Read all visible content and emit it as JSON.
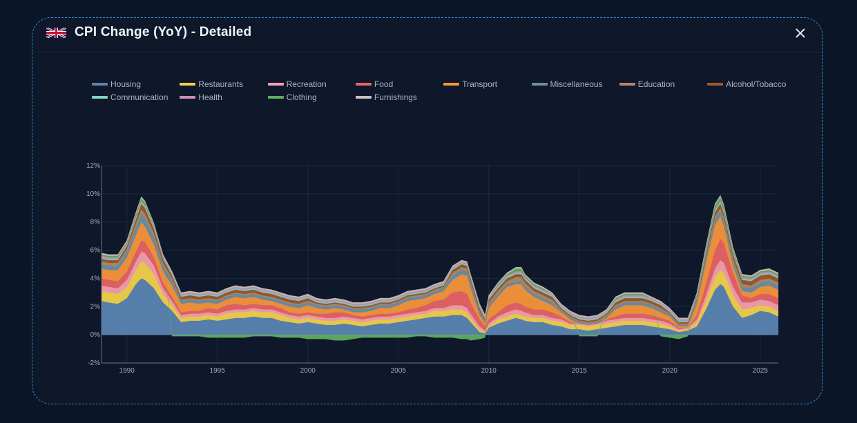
{
  "modal": {
    "title": "CPI Change (YoY) - Detailed",
    "flag_icon": "uk-flag-icon",
    "close_icon": "close-icon"
  },
  "colors": {
    "background": "#0a1628",
    "panel": "#0f172a",
    "border": "#2f8fd8"
  },
  "chart_data": {
    "type": "area",
    "stacked": true,
    "title": "",
    "xlabel": "",
    "ylabel": "",
    "xlim": [
      1988.6,
      2026.0
    ],
    "ylim": [
      -2,
      12
    ],
    "x_ticks": [
      "1990",
      "1995",
      "2000",
      "2005",
      "2010",
      "2015",
      "2020",
      "2025"
    ],
    "y_ticks": [
      "12%",
      "10%",
      "8%",
      "6%",
      "4%",
      "2%",
      "0%",
      "-2%"
    ],
    "grid": true,
    "legend_position": "top",
    "x": [
      1988.6,
      1989.0,
      1989.5,
      1990.0,
      1990.5,
      1990.8,
      1991.0,
      1991.5,
      1992.0,
      1992.5,
      1993.0,
      1993.5,
      1994.0,
      1994.5,
      1995.0,
      1995.5,
      1996.0,
      1996.5,
      1997.0,
      1997.5,
      1998.0,
      1998.5,
      1999.0,
      1999.5,
      2000.0,
      2000.5,
      2001.0,
      2001.5,
      2002.0,
      2002.5,
      2003.0,
      2003.5,
      2004.0,
      2004.5,
      2005.0,
      2005.5,
      2006.0,
      2006.5,
      2007.0,
      2007.5,
      2008.0,
      2008.5,
      2008.8,
      2009.0,
      2009.5,
      2009.8,
      2010.0,
      2010.5,
      2011.0,
      2011.5,
      2011.8,
      2012.0,
      2012.5,
      2013.0,
      2013.5,
      2014.0,
      2014.5,
      2015.0,
      2015.5,
      2016.0,
      2016.5,
      2017.0,
      2017.5,
      2018.0,
      2018.5,
      2019.0,
      2019.5,
      2020.0,
      2020.5,
      2021.0,
      2021.5,
      2022.0,
      2022.5,
      2022.8,
      2023.0,
      2023.5,
      2024.0,
      2024.5,
      2025.0,
      2025.5,
      2026.0
    ],
    "series": [
      {
        "name": "Housing",
        "color": "#5b84b1",
        "values": [
          2.4,
          2.3,
          2.2,
          2.6,
          3.6,
          4.0,
          3.9,
          3.3,
          2.3,
          1.7,
          0.9,
          1.0,
          1.0,
          1.1,
          1.0,
          1.1,
          1.2,
          1.2,
          1.3,
          1.2,
          1.2,
          1.0,
          0.9,
          0.8,
          0.9,
          0.8,
          0.7,
          0.7,
          0.8,
          0.7,
          0.6,
          0.7,
          0.8,
          0.8,
          0.9,
          1.0,
          1.1,
          1.2,
          1.3,
          1.3,
          1.4,
          1.4,
          1.2,
          0.9,
          0.2,
          0.1,
          0.5,
          0.8,
          1.0,
          1.2,
          1.1,
          1.0,
          0.9,
          0.9,
          0.7,
          0.6,
          0.4,
          0.4,
          0.3,
          0.4,
          0.5,
          0.6,
          0.7,
          0.7,
          0.7,
          0.6,
          0.5,
          0.4,
          0.2,
          0.3,
          0.6,
          1.8,
          3.2,
          3.6,
          3.4,
          2.0,
          1.2,
          1.4,
          1.7,
          1.6,
          1.3
        ]
      },
      {
        "name": "Restaurants",
        "color": "#f2d14a",
        "values": [
          0.7,
          0.7,
          0.7,
          0.8,
          1.0,
          1.2,
          1.2,
          1.0,
          0.6,
          0.4,
          0.3,
          0.3,
          0.3,
          0.3,
          0.3,
          0.4,
          0.4,
          0.4,
          0.4,
          0.4,
          0.4,
          0.4,
          0.3,
          0.3,
          0.3,
          0.3,
          0.3,
          0.3,
          0.3,
          0.3,
          0.3,
          0.3,
          0.3,
          0.3,
          0.3,
          0.3,
          0.3,
          0.3,
          0.4,
          0.4,
          0.4,
          0.4,
          0.4,
          0.3,
          0.2,
          0.1,
          0.1,
          0.3,
          0.3,
          0.3,
          0.3,
          0.3,
          0.3,
          0.3,
          0.3,
          0.3,
          0.3,
          0.3,
          0.3,
          0.3,
          0.3,
          0.3,
          0.3,
          0.3,
          0.3,
          0.3,
          0.3,
          0.2,
          0.1,
          0.1,
          0.3,
          0.6,
          0.9,
          1.0,
          1.0,
          0.8,
          0.6,
          0.5,
          0.4,
          0.4,
          0.4
        ]
      },
      {
        "name": "Recreation",
        "color": "#f4a0b0",
        "values": [
          0.4,
          0.4,
          0.4,
          0.5,
          0.6,
          0.7,
          0.7,
          0.6,
          0.4,
          0.3,
          0.2,
          0.2,
          0.2,
          0.2,
          0.2,
          0.2,
          0.2,
          0.2,
          0.2,
          0.2,
          0.2,
          0.2,
          0.2,
          0.2,
          0.2,
          0.2,
          0.2,
          0.2,
          0.2,
          0.2,
          0.2,
          0.2,
          0.2,
          0.2,
          0.2,
          0.2,
          0.2,
          0.2,
          0.2,
          0.2,
          0.3,
          0.3,
          0.3,
          0.3,
          0.2,
          0.1,
          0.2,
          0.2,
          0.3,
          0.3,
          0.3,
          0.3,
          0.2,
          0.2,
          0.2,
          0.2,
          0.1,
          0.1,
          0.1,
          0.1,
          0.2,
          0.2,
          0.2,
          0.2,
          0.2,
          0.2,
          0.2,
          0.2,
          0.1,
          0.1,
          0.2,
          0.4,
          0.6,
          0.7,
          0.7,
          0.6,
          0.5,
          0.4,
          0.4,
          0.4,
          0.4
        ]
      },
      {
        "name": "Food",
        "color": "#e86464",
        "values": [
          0.5,
          0.5,
          0.5,
          0.6,
          0.7,
          0.8,
          0.8,
          0.6,
          0.4,
          0.3,
          0.2,
          0.2,
          0.2,
          0.3,
          0.3,
          0.4,
          0.4,
          0.3,
          0.3,
          0.3,
          0.3,
          0.3,
          0.2,
          0.2,
          0.2,
          0.2,
          0.3,
          0.4,
          0.3,
          0.2,
          0.2,
          0.2,
          0.2,
          0.2,
          0.2,
          0.3,
          0.3,
          0.4,
          0.5,
          0.6,
          0.9,
          1.0,
          1.0,
          0.8,
          0.5,
          0.3,
          0.3,
          0.3,
          0.5,
          0.5,
          0.5,
          0.4,
          0.4,
          0.4,
          0.4,
          0.2,
          0.1,
          0.0,
          0.0,
          0.0,
          0.1,
          0.2,
          0.3,
          0.3,
          0.3,
          0.3,
          0.2,
          0.2,
          0.1,
          0.0,
          0.3,
          0.8,
          1.3,
          1.5,
          1.4,
          1.0,
          0.5,
          0.3,
          0.4,
          0.5,
          0.5
        ]
      },
      {
        "name": "Transport",
        "color": "#f7953a",
        "values": [
          0.7,
          0.7,
          0.8,
          1.0,
          1.2,
          1.3,
          1.1,
          0.9,
          0.8,
          0.8,
          0.6,
          0.6,
          0.5,
          0.4,
          0.4,
          0.4,
          0.5,
          0.5,
          0.5,
          0.4,
          0.3,
          0.3,
          0.4,
          0.4,
          0.5,
          0.4,
          0.3,
          0.3,
          0.2,
          0.2,
          0.3,
          0.3,
          0.4,
          0.4,
          0.5,
          0.6,
          0.6,
          0.5,
          0.5,
          0.6,
          0.9,
          1.2,
          1.3,
          1.0,
          0.3,
          0.2,
          0.8,
          1.1,
          1.3,
          1.3,
          1.4,
          1.2,
          0.9,
          0.6,
          0.5,
          0.3,
          0.2,
          0.0,
          0.0,
          0.0,
          0.1,
          0.5,
          0.6,
          0.6,
          0.6,
          0.5,
          0.4,
          0.3,
          0.1,
          0.1,
          0.8,
          1.5,
          1.8,
          1.6,
          1.2,
          0.5,
          0.3,
          0.4,
          0.5,
          0.6,
          0.6
        ]
      },
      {
        "name": "Miscellaneous",
        "color": "#6a8fa8",
        "values": [
          0.3,
          0.3,
          0.3,
          0.4,
          0.5,
          0.6,
          0.6,
          0.5,
          0.4,
          0.3,
          0.2,
          0.2,
          0.2,
          0.2,
          0.2,
          0.2,
          0.2,
          0.2,
          0.2,
          0.2,
          0.2,
          0.2,
          0.2,
          0.2,
          0.2,
          0.2,
          0.2,
          0.2,
          0.2,
          0.2,
          0.2,
          0.2,
          0.2,
          0.2,
          0.2,
          0.2,
          0.2,
          0.2,
          0.2,
          0.2,
          0.3,
          0.3,
          0.3,
          0.3,
          0.2,
          0.1,
          0.2,
          0.2,
          0.2,
          0.2,
          0.2,
          0.2,
          0.2,
          0.2,
          0.2,
          0.1,
          0.1,
          0.1,
          0.1,
          0.1,
          0.1,
          0.2,
          0.2,
          0.2,
          0.2,
          0.2,
          0.2,
          0.1,
          0.1,
          0.1,
          0.2,
          0.3,
          0.4,
          0.4,
          0.4,
          0.3,
          0.3,
          0.3,
          0.3,
          0.3,
          0.3
        ]
      },
      {
        "name": "Education",
        "color": "#b08a6a",
        "values": [
          0.2,
          0.2,
          0.2,
          0.2,
          0.3,
          0.3,
          0.3,
          0.3,
          0.2,
          0.2,
          0.1,
          0.1,
          0.1,
          0.1,
          0.1,
          0.1,
          0.1,
          0.1,
          0.1,
          0.1,
          0.1,
          0.1,
          0.1,
          0.1,
          0.1,
          0.1,
          0.1,
          0.1,
          0.1,
          0.1,
          0.1,
          0.1,
          0.1,
          0.1,
          0.1,
          0.1,
          0.1,
          0.1,
          0.1,
          0.1,
          0.2,
          0.2,
          0.2,
          0.2,
          0.1,
          0.1,
          0.2,
          0.2,
          0.2,
          0.3,
          0.3,
          0.3,
          0.2,
          0.2,
          0.2,
          0.1,
          0.1,
          0.1,
          0.1,
          0.1,
          0.1,
          0.1,
          0.1,
          0.1,
          0.1,
          0.1,
          0.1,
          0.1,
          0.1,
          0.1,
          0.1,
          0.2,
          0.2,
          0.2,
          0.2,
          0.2,
          0.2,
          0.2,
          0.2,
          0.2,
          0.2
        ]
      },
      {
        "name": "Alcohol/Tobacco",
        "color": "#9c5a2a",
        "values": [
          0.2,
          0.2,
          0.2,
          0.2,
          0.3,
          0.4,
          0.4,
          0.3,
          0.3,
          0.2,
          0.2,
          0.2,
          0.2,
          0.2,
          0.2,
          0.2,
          0.2,
          0.2,
          0.2,
          0.2,
          0.2,
          0.2,
          0.2,
          0.2,
          0.2,
          0.1,
          0.1,
          0.1,
          0.1,
          0.1,
          0.1,
          0.1,
          0.1,
          0.1,
          0.1,
          0.1,
          0.1,
          0.1,
          0.1,
          0.1,
          0.2,
          0.2,
          0.2,
          0.2,
          0.2,
          0.1,
          0.2,
          0.2,
          0.2,
          0.2,
          0.2,
          0.2,
          0.2,
          0.2,
          0.2,
          0.1,
          0.1,
          0.1,
          0.1,
          0.1,
          0.1,
          0.2,
          0.2,
          0.2,
          0.2,
          0.2,
          0.2,
          0.1,
          0.1,
          0.1,
          0.1,
          0.2,
          0.3,
          0.3,
          0.3,
          0.3,
          0.3,
          0.3,
          0.3,
          0.3,
          0.3
        ]
      },
      {
        "name": "Communication",
        "color": "#86cfc0",
        "values": [
          0.1,
          0.1,
          0.1,
          0.1,
          0.1,
          0.1,
          0.1,
          0.1,
          0.1,
          0.1,
          0.1,
          0.1,
          0.1,
          0.1,
          0.1,
          0.1,
          0.1,
          0.1,
          0.1,
          0.1,
          0.1,
          0.1,
          0.1,
          0.1,
          0.1,
          0.1,
          0.1,
          0.1,
          0.1,
          0.1,
          0.1,
          0.1,
          0.1,
          0.1,
          0.1,
          0.1,
          0.1,
          0.1,
          0.1,
          0.1,
          0.1,
          0.1,
          0.1,
          0.1,
          0.1,
          0.1,
          0.1,
          0.1,
          0.1,
          0.1,
          0.1,
          0.1,
          0.1,
          0.1,
          0.1,
          0.1,
          0.1,
          0.1,
          0.1,
          0.1,
          0.1,
          0.1,
          0.1,
          0.1,
          0.1,
          0.1,
          0.1,
          0.1,
          0.1,
          0.1,
          0.1,
          0.1,
          0.1,
          0.1,
          0.1,
          0.1,
          0.1,
          0.1,
          0.1,
          0.1,
          0.1
        ]
      },
      {
        "name": "Health",
        "color": "#c98fb5",
        "values": [
          0.1,
          0.1,
          0.1,
          0.1,
          0.1,
          0.1,
          0.1,
          0.1,
          0.1,
          0.1,
          0.1,
          0.1,
          0.1,
          0.1,
          0.1,
          0.1,
          0.1,
          0.1,
          0.1,
          0.1,
          0.1,
          0.1,
          0.1,
          0.1,
          0.1,
          0.1,
          0.1,
          0.1,
          0.1,
          0.1,
          0.1,
          0.1,
          0.1,
          0.1,
          0.1,
          0.1,
          0.1,
          0.1,
          0.1,
          0.1,
          0.1,
          0.1,
          0.1,
          0.1,
          0.1,
          0.1,
          0.1,
          0.1,
          0.1,
          0.1,
          0.1,
          0.1,
          0.1,
          0.1,
          0.1,
          0.1,
          0.1,
          0.1,
          0.1,
          0.1,
          0.1,
          0.1,
          0.1,
          0.1,
          0.1,
          0.1,
          0.1,
          0.1,
          0.1,
          0.1,
          0.1,
          0.1,
          0.1,
          0.1,
          0.1,
          0.1,
          0.1,
          0.1,
          0.1,
          0.1,
          0.1
        ]
      },
      {
        "name": "Clothing",
        "color": "#5faf5f",
        "values": [
          0.1,
          0.1,
          0.1,
          0.1,
          0.2,
          0.2,
          0.2,
          0.1,
          0.0,
          -0.1,
          -0.1,
          -0.1,
          -0.1,
          -0.2,
          -0.2,
          -0.2,
          -0.2,
          -0.2,
          -0.1,
          -0.1,
          -0.1,
          -0.2,
          -0.2,
          -0.2,
          -0.3,
          -0.3,
          -0.3,
          -0.4,
          -0.4,
          -0.3,
          -0.2,
          -0.2,
          -0.2,
          -0.2,
          -0.2,
          -0.2,
          -0.1,
          -0.1,
          -0.2,
          -0.2,
          -0.2,
          -0.3,
          -0.3,
          -0.4,
          -0.3,
          -0.2,
          0.0,
          0.1,
          0.1,
          0.2,
          0.2,
          0.1,
          0.1,
          0.1,
          0.0,
          0.0,
          0.0,
          -0.1,
          -0.1,
          -0.1,
          0.0,
          0.1,
          0.1,
          0.1,
          0.1,
          0.0,
          -0.1,
          -0.2,
          -0.3,
          -0.1,
          0.1,
          0.2,
          0.3,
          0.3,
          0.3,
          0.2,
          0.1,
          0.1,
          0.1,
          0.1,
          0.1
        ]
      },
      {
        "name": "Furnishings",
        "color": "#c8c0b8",
        "values": [
          0.1,
          0.1,
          0.1,
          0.1,
          0.1,
          0.1,
          0.1,
          0.1,
          0.1,
          0.1,
          0.1,
          0.1,
          0.1,
          0.1,
          0.1,
          0.1,
          0.1,
          0.1,
          0.1,
          0.1,
          0.1,
          0.1,
          0.1,
          0.1,
          0.1,
          0.1,
          0.1,
          0.1,
          0.1,
          0.1,
          0.1,
          0.1,
          0.1,
          0.1,
          0.1,
          0.1,
          0.1,
          0.1,
          0.1,
          0.1,
          0.1,
          0.1,
          0.1,
          0.1,
          0.1,
          0.1,
          0.1,
          0.1,
          0.1,
          0.1,
          0.1,
          0.1,
          0.1,
          0.1,
          0.1,
          0.1,
          0.1,
          0.1,
          0.1,
          0.1,
          0.1,
          0.1,
          0.1,
          0.1,
          0.1,
          0.1,
          0.1,
          0.1,
          0.1,
          0.1,
          0.1,
          0.1,
          0.1,
          0.1,
          0.1,
          0.1,
          0.1,
          0.1,
          0.1,
          0.1,
          0.1
        ]
      }
    ]
  }
}
